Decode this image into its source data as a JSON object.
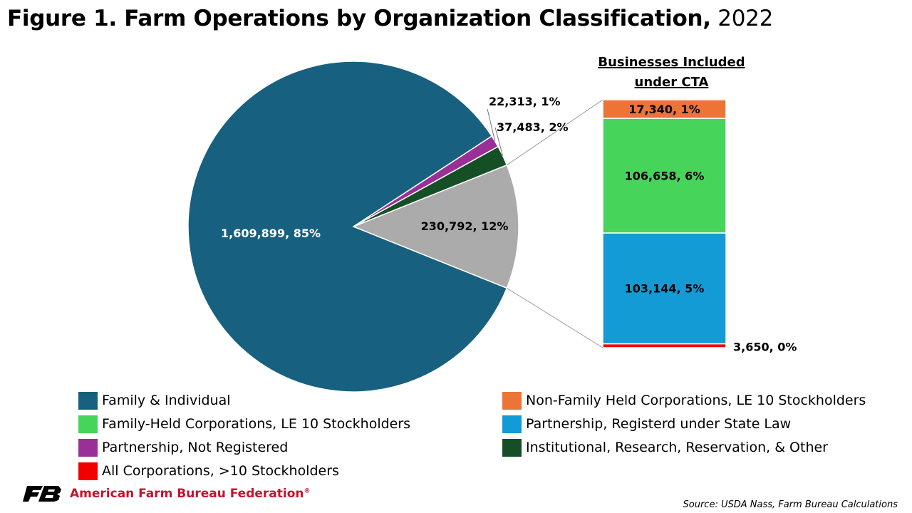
{
  "title": {
    "main": "Figure 1. Farm Operations by Organization Classification,",
    "year": "2022"
  },
  "chart_data": {
    "type": "bar-of-pie",
    "title": "Figure 1. Farm Operations by Organization Classification, 2022",
    "pie": {
      "slices": [
        {
          "category": "Family & Individual",
          "value": 1609899,
          "percent": 85,
          "label": "1,609,899, 85%",
          "color": "#17607f"
        },
        {
          "category": "Partnership, Not Registered",
          "value": 22313,
          "percent": 1,
          "label": "22,313, 1%",
          "color": "#9b2f98"
        },
        {
          "category": "Institutional, Research, Reservation, & Other",
          "value": 37483,
          "percent": 2,
          "label": "37,483, 2%",
          "color": "#154f25"
        },
        {
          "category": "Businesses Included under CTA",
          "value": 230792,
          "percent": 12,
          "label": "230,792, 12%",
          "color": "#ababab"
        }
      ]
    },
    "bar": {
      "title": "Businesses Included under CTA",
      "segments": [
        {
          "category": "All Corporations, >10 Stockholders",
          "value": 3650,
          "percent": 0,
          "label": "3,650, 0%",
          "color": "#f20000"
        },
        {
          "category": "Partnership, Registerd under State Law",
          "value": 103144,
          "percent": 5,
          "label": "103,144, 5%",
          "color": "#129bd4"
        },
        {
          "category": "Family-Held Corporations, LE 10 Stockholders",
          "value": 106658,
          "percent": 6,
          "label": "106,658, 6%",
          "color": "#47d45a"
        },
        {
          "category": "Non-Family Held Corporations, LE 10 Stockholders",
          "value": 17340,
          "percent": 1,
          "label": "17,340, 1%",
          "color": "#ec7436"
        }
      ]
    }
  },
  "legend": {
    "left": [
      {
        "label": "Family & Individual",
        "color": "#17607f"
      },
      {
        "label": "Family-Held Corporations, LE 10 Stockholders",
        "color": "#47d45a"
      },
      {
        "label": "Partnership, Not Registered",
        "color": "#9b2f98"
      },
      {
        "label": "All Corporations, >10 Stockholders",
        "color": "#f20000"
      }
    ],
    "right": [
      {
        "label": "Non-Family Held Corporations, LE 10 Stockholders",
        "color": "#ec7436"
      },
      {
        "label": "Partnership, Registerd under State Law",
        "color": "#129bd4"
      },
      {
        "label": "Institutional, Research, Reservation, & Other",
        "color": "#154f25"
      }
    ]
  },
  "footer": {
    "org": "American Farm Bureau Federation",
    "org_mark": "®",
    "source": "Source: USDA Nass, Farm Bureau Calculations"
  }
}
